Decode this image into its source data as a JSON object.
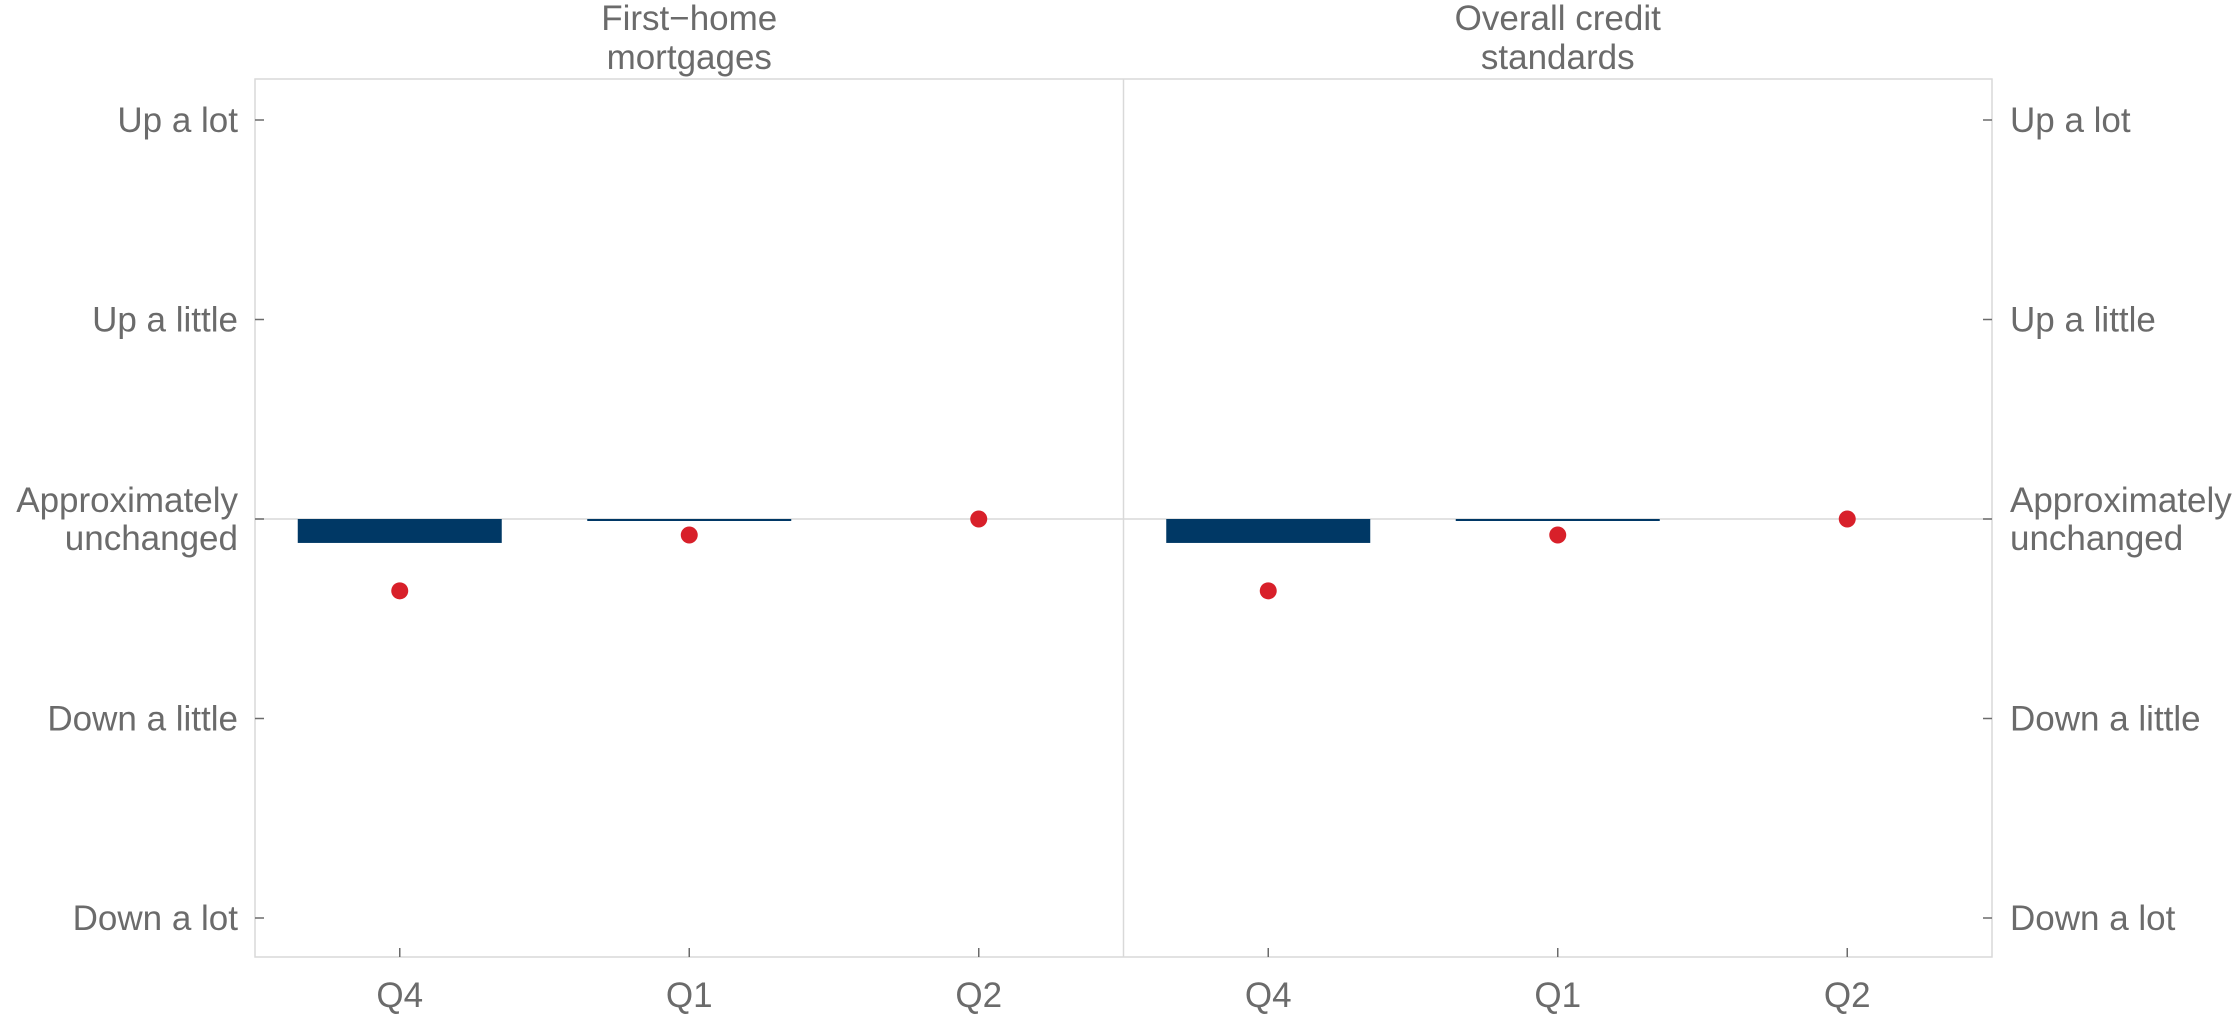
{
  "chart_data": {
    "type": "bar",
    "y_categories": [
      "Down a lot",
      "Down a little",
      "Approximately unchanged",
      "Up a little",
      "Up a lot"
    ],
    "ylim": [
      -2,
      2
    ],
    "y_ticks": [
      {
        "value": 2,
        "lines": [
          "Up a lot"
        ]
      },
      {
        "value": 1,
        "lines": [
          "Up a little"
        ]
      },
      {
        "value": 0,
        "lines": [
          "Approximately",
          "unchanged"
        ]
      },
      {
        "value": -1,
        "lines": [
          "Down a little"
        ]
      },
      {
        "value": -2,
        "lines": [
          "Down a lot"
        ]
      }
    ],
    "categories": [
      "Q4",
      "Q1",
      "Q2"
    ],
    "grid": false,
    "colors": {
      "bar": "#003865",
      "dot": "#d8202a",
      "frame": "#d9d9d9",
      "text": "#6b6b6b"
    },
    "panels": [
      {
        "title_lines": [
          "First−home",
          "mortgages"
        ],
        "bars": [
          -0.12,
          -0.01,
          null
        ],
        "dots": [
          -0.36,
          -0.08,
          0.0
        ]
      },
      {
        "title_lines": [
          "Overall credit",
          "standards"
        ],
        "bars": [
          -0.12,
          -0.01,
          null
        ],
        "dots": [
          -0.36,
          -0.08,
          0.0
        ]
      }
    ]
  }
}
